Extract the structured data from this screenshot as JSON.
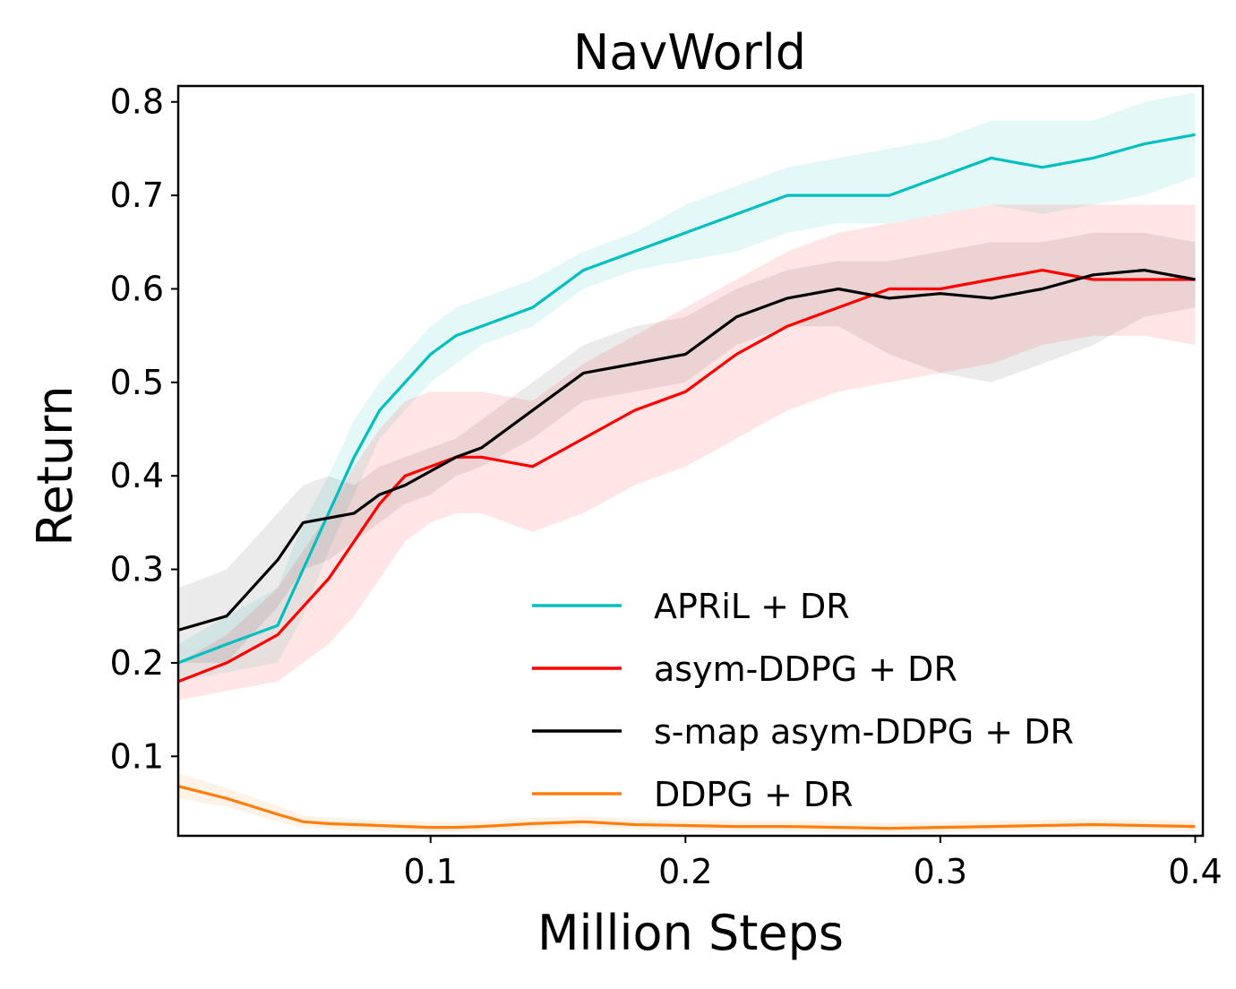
{
  "chart_data": {
    "type": "line",
    "title": "NavWorld",
    "xlabel": "Million Steps",
    "ylabel": "Return",
    "xlim": [
      0.001,
      0.403
    ],
    "ylim": [
      0.015,
      0.817
    ],
    "xticks": [
      0.1,
      0.2,
      0.3,
      0.4
    ],
    "xtick_labels": [
      "0.1",
      "0.2",
      "0.3",
      "0.4"
    ],
    "yticks": [
      0.1,
      0.2,
      0.3,
      0.4,
      0.5,
      0.6,
      0.7,
      0.8
    ],
    "ytick_labels": [
      "0.1",
      "0.2",
      "0.3",
      "0.4",
      "0.5",
      "0.6",
      "0.7",
      "0.8"
    ],
    "grid": false,
    "legend_position": "lower-right",
    "x": [
      0.0,
      0.02,
      0.04,
      0.05,
      0.06,
      0.07,
      0.08,
      0.09,
      0.1,
      0.11,
      0.12,
      0.14,
      0.16,
      0.18,
      0.2,
      0.22,
      0.24,
      0.26,
      0.28,
      0.3,
      0.32,
      0.34,
      0.36,
      0.38,
      0.4
    ],
    "series": [
      {
        "name": "APRiL + DR",
        "color": "#00bfbf",
        "values": [
          0.2,
          0.22,
          0.24,
          0.3,
          0.36,
          0.42,
          0.47,
          0.5,
          0.53,
          0.55,
          0.56,
          0.58,
          0.62,
          0.64,
          0.66,
          0.68,
          0.7,
          0.7,
          0.7,
          0.72,
          0.74,
          0.73,
          0.74,
          0.755,
          0.765
        ],
        "lower": [
          0.18,
          0.19,
          0.2,
          0.25,
          0.32,
          0.38,
          0.44,
          0.47,
          0.5,
          0.52,
          0.54,
          0.56,
          0.6,
          0.62,
          0.63,
          0.64,
          0.66,
          0.67,
          0.67,
          0.68,
          0.69,
          0.68,
          0.69,
          0.7,
          0.72
        ],
        "upper": [
          0.22,
          0.25,
          0.28,
          0.35,
          0.4,
          0.46,
          0.5,
          0.53,
          0.56,
          0.58,
          0.59,
          0.61,
          0.64,
          0.66,
          0.69,
          0.71,
          0.73,
          0.74,
          0.75,
          0.76,
          0.78,
          0.78,
          0.78,
          0.8,
          0.81
        ]
      },
      {
        "name": "asym-DDPG + DR",
        "color": "#ff0000",
        "values": [
          0.18,
          0.2,
          0.23,
          0.26,
          0.29,
          0.33,
          0.37,
          0.4,
          0.41,
          0.42,
          0.42,
          0.41,
          0.44,
          0.47,
          0.49,
          0.53,
          0.56,
          0.58,
          0.6,
          0.6,
          0.61,
          0.62,
          0.61,
          0.61,
          0.61
        ],
        "lower": [
          0.16,
          0.17,
          0.18,
          0.2,
          0.22,
          0.25,
          0.29,
          0.33,
          0.35,
          0.36,
          0.36,
          0.34,
          0.36,
          0.39,
          0.41,
          0.44,
          0.47,
          0.49,
          0.5,
          0.51,
          0.52,
          0.54,
          0.55,
          0.55,
          0.54
        ],
        "upper": [
          0.2,
          0.23,
          0.28,
          0.32,
          0.36,
          0.41,
          0.45,
          0.48,
          0.49,
          0.49,
          0.49,
          0.48,
          0.52,
          0.55,
          0.58,
          0.61,
          0.64,
          0.66,
          0.67,
          0.68,
          0.69,
          0.69,
          0.69,
          0.69,
          0.69
        ]
      },
      {
        "name": "s-map asym-DDPG + DR",
        "color": "#000000",
        "values": [
          0.235,
          0.25,
          0.31,
          0.35,
          0.355,
          0.36,
          0.38,
          0.39,
          0.405,
          0.42,
          0.43,
          0.47,
          0.51,
          0.52,
          0.53,
          0.57,
          0.59,
          0.6,
          0.59,
          0.595,
          0.59,
          0.6,
          0.615,
          0.62,
          0.61
        ],
        "lower": [
          0.2,
          0.2,
          0.26,
          0.3,
          0.31,
          0.33,
          0.35,
          0.37,
          0.38,
          0.4,
          0.41,
          0.44,
          0.48,
          0.49,
          0.5,
          0.54,
          0.56,
          0.56,
          0.53,
          0.51,
          0.5,
          0.52,
          0.54,
          0.57,
          0.58
        ],
        "upper": [
          0.28,
          0.3,
          0.36,
          0.39,
          0.4,
          0.39,
          0.41,
          0.42,
          0.43,
          0.44,
          0.46,
          0.5,
          0.54,
          0.56,
          0.57,
          0.6,
          0.62,
          0.63,
          0.63,
          0.64,
          0.65,
          0.65,
          0.66,
          0.66,
          0.65
        ]
      },
      {
        "name": "DDPG + DR",
        "color": "#ff7f0e",
        "values": [
          0.068,
          0.055,
          0.038,
          0.03,
          0.028,
          0.027,
          0.026,
          0.025,
          0.024,
          0.024,
          0.025,
          0.028,
          0.03,
          0.027,
          0.026,
          0.025,
          0.025,
          0.024,
          0.023,
          0.024,
          0.025,
          0.026,
          0.027,
          0.026,
          0.025
        ],
        "lower": [
          0.055,
          0.046,
          0.03,
          0.024,
          0.022,
          0.021,
          0.02,
          0.02,
          0.019,
          0.019,
          0.02,
          0.022,
          0.024,
          0.022,
          0.021,
          0.02,
          0.02,
          0.019,
          0.018,
          0.019,
          0.02,
          0.021,
          0.022,
          0.021,
          0.02
        ],
        "upper": [
          0.082,
          0.066,
          0.047,
          0.037,
          0.034,
          0.033,
          0.032,
          0.031,
          0.03,
          0.03,
          0.031,
          0.034,
          0.036,
          0.033,
          0.032,
          0.031,
          0.031,
          0.03,
          0.029,
          0.03,
          0.031,
          0.032,
          0.033,
          0.032,
          0.031
        ]
      }
    ]
  }
}
